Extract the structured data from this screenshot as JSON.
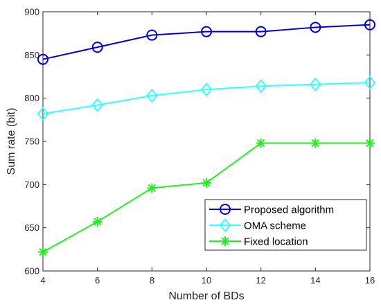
{
  "chart_data": {
    "type": "line",
    "title": "",
    "xlabel": "Number of BDs",
    "ylabel": "Sum rate (bit)",
    "x": [
      4,
      6,
      8,
      10,
      12,
      14,
      16
    ],
    "xlim": [
      4,
      16
    ],
    "ylim": [
      600,
      900
    ],
    "xticks": [
      "4",
      "6",
      "8",
      "10",
      "12",
      "14",
      "16"
    ],
    "yticks": [
      "600",
      "650",
      "700",
      "750",
      "800",
      "850",
      "900"
    ],
    "grid": false,
    "legend_position": "bottom-right",
    "series": [
      {
        "name": "Proposed algorithm",
        "color": "#0000CC",
        "marker": "circle",
        "values": [
          845,
          859,
          873,
          877,
          877,
          882,
          885
        ]
      },
      {
        "name": "OMA scheme",
        "color": "#33FFFF",
        "marker": "diamond",
        "values": [
          782,
          792,
          803,
          810,
          814,
          816,
          818
        ]
      },
      {
        "name": "Fixed location",
        "color": "#22EE22",
        "marker": "asterisk",
        "values": [
          622,
          657,
          696,
          702,
          748,
          748,
          748
        ]
      }
    ]
  }
}
